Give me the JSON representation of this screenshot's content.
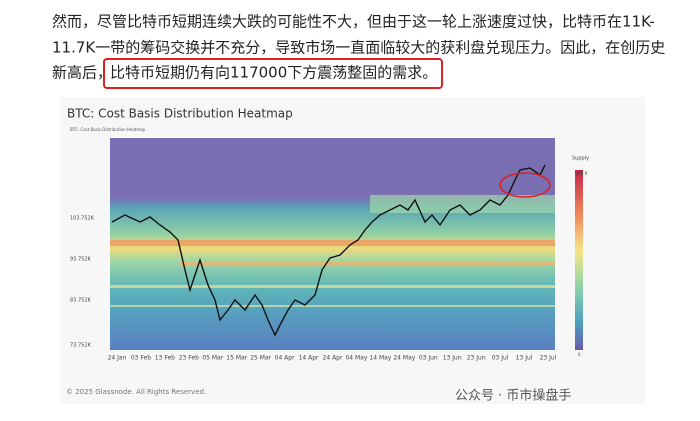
{
  "paragraph": {
    "lines": [
      "然而，尽管比特币短期连续大跌的可能性不大，但由于这一轮上涨速度过快，比特币在11K-",
      "11.7K一带的筹码交换并不充分，导致市场一直面临较大的获利盘兑现压力。因此，在创历史",
      "新高后，"
    ],
    "highlight": "比特币短期仍有向117000下方震荡整固的需求。"
  },
  "figure": {
    "title": "BTC: Cost Basis Distribution Heatmap",
    "legend": "BTC: Cost Basis Distribution Heatmap",
    "y_labels": [
      "103.752K",
      "93.752K",
      "83.752K",
      "73.752K"
    ],
    "x_labels": [
      "24 Jan",
      "03 Feb",
      "13 Feb",
      "23 Feb",
      "05 Mar",
      "15 Mar",
      "25 Mar",
      "04 Apr",
      "14 Apr",
      "24 Apr",
      "04 May",
      "14 May",
      "24 May",
      "03 Jun",
      "13 Jun",
      "23 Jun",
      "03 Jul",
      "13 Jul",
      "23 Jul"
    ],
    "colorbar": {
      "title": "Supply",
      "max": "301 K",
      "min": "0"
    },
    "copyright": "© 2025 Glassnode. All Rights Reserved."
  },
  "watermark": "公众号 · 币市操盘手"
}
